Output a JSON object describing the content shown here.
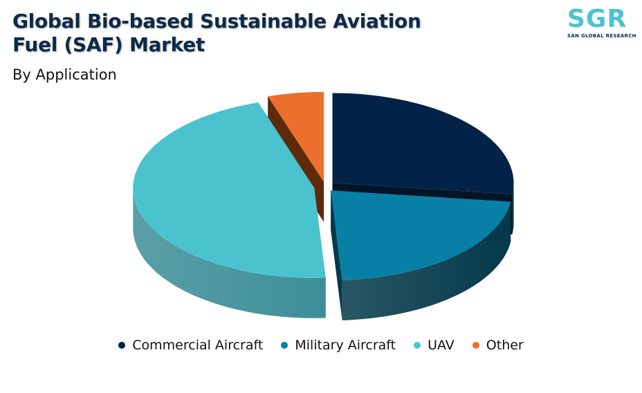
{
  "header": {
    "title": "Global Bio-based Sustainable Aviation Fuel (SAF) Market",
    "subtitle": "By Application"
  },
  "logo": {
    "letters": "SGR",
    "tagline": "SAN GLOBAL RESEARCH",
    "color": "#4cc3cf"
  },
  "chart_data": {
    "type": "pie",
    "style": "3d-exploded",
    "title": "Global Bio-based Sustainable Aviation Fuel (SAF) Market",
    "subtitle": "By Application",
    "categories": [
      "Commercial Aircraft",
      "Military Aircraft",
      "UAV",
      "Other"
    ],
    "values": [
      27,
      22,
      46,
      5
    ],
    "colors": [
      "#022347",
      "#0880a6",
      "#4ac3cf",
      "#ec6f2d"
    ],
    "side_colors": [
      "#011428",
      "#03394a",
      "#3d8e98",
      "#5e2a0c"
    ],
    "legend_position": "bottom"
  }
}
